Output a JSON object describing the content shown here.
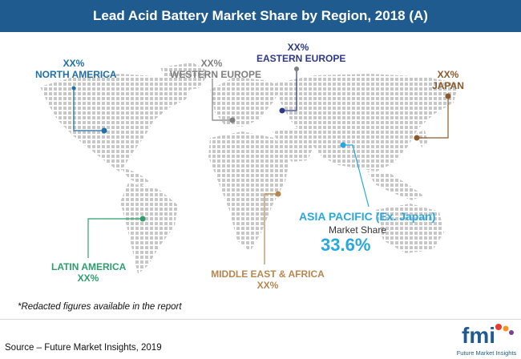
{
  "title": "Lead Acid Battery Market Share by Region, 2018 (A)",
  "note": "*Redacted figures available in the report",
  "source": "Source – Future Market Insights, 2019",
  "logo": {
    "mark": "fmi",
    "tagline": "Future Market Insights"
  },
  "chart_data": {
    "type": "map",
    "title": "Lead Acid Battery Market Share by Region, 2018 (A)",
    "value_label": "Market Share",
    "regions": [
      {
        "name": "NORTH AMERICA",
        "value": "XX%",
        "color": "#1f6fa8"
      },
      {
        "name": "WESTERN EUROPE",
        "value": "XX%",
        "color": "#808080"
      },
      {
        "name": "EASTERN EUROPE",
        "value": "XX%",
        "color": "#2e3a87"
      },
      {
        "name": "JAPAN",
        "value": "XX%",
        "color": "#8a5a2b"
      },
      {
        "name": "ASIA PACIFIC (Ex. Japan)",
        "value": "33.6%",
        "value_numeric": 33.6,
        "color": "#29a8e0",
        "highlighted": true
      },
      {
        "name": "LATIN AMERICA",
        "value": "XX%",
        "color": "#2e9e6e"
      },
      {
        "name": "MIDDLE EAST & AFRICA",
        "value": "XX%",
        "color": "#b8864e"
      }
    ]
  }
}
